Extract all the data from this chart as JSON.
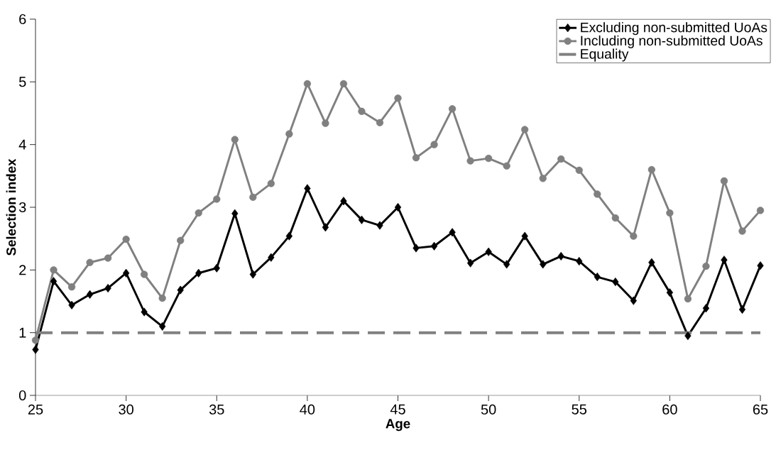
{
  "chart_data": {
    "type": "line",
    "xlabel": "Age",
    "ylabel": "Selection index",
    "x": [
      25,
      26,
      27,
      28,
      29,
      30,
      31,
      32,
      33,
      34,
      35,
      36,
      37,
      38,
      39,
      40,
      41,
      42,
      43,
      44,
      45,
      46,
      47,
      48,
      49,
      50,
      51,
      52,
      53,
      54,
      55,
      56,
      57,
      58,
      59,
      60,
      61,
      62,
      63,
      64,
      65
    ],
    "series": [
      {
        "name": "Excluding non-submitted UoAs",
        "color": "#000000",
        "marker": "diamond",
        "values": [
          0.73,
          1.82,
          1.44,
          1.61,
          1.71,
          1.95,
          1.33,
          1.1,
          1.68,
          1.95,
          2.03,
          2.9,
          1.93,
          2.2,
          2.54,
          3.3,
          2.68,
          3.1,
          2.8,
          2.71,
          3.0,
          2.35,
          2.38,
          2.6,
          2.11,
          2.29,
          2.09,
          2.54,
          2.09,
          2.22,
          2.14,
          1.89,
          1.81,
          1.51,
          2.12,
          1.64,
          0.95,
          1.39,
          2.16,
          1.37,
          2.07
        ]
      },
      {
        "name": "Including non-submitted UoAs",
        "color": "#808080",
        "marker": "circle",
        "values": [
          0.88,
          2.0,
          1.73,
          2.12,
          2.19,
          2.49,
          1.93,
          1.55,
          2.47,
          2.91,
          3.13,
          4.08,
          3.16,
          3.38,
          4.17,
          4.97,
          4.34,
          4.97,
          4.53,
          4.35,
          4.74,
          3.79,
          4.0,
          4.57,
          3.74,
          3.78,
          3.66,
          4.24,
          3.46,
          3.77,
          3.59,
          3.21,
          2.83,
          2.54,
          3.6,
          2.91,
          1.54,
          2.06,
          3.42,
          2.62,
          2.95
        ]
      }
    ],
    "ref_lines": [
      {
        "axis": "y",
        "value": 1,
        "label": "Equality",
        "color": "#808080",
        "line_style": "dashed"
      }
    ],
    "xlim": [
      25,
      65
    ],
    "xticks": [
      25,
      30,
      35,
      40,
      45,
      50,
      55,
      60,
      65
    ],
    "ylim": [
      0,
      6
    ],
    "yticks": [
      0,
      1,
      2,
      3,
      4,
      5,
      6
    ],
    "grid": false,
    "legend": "top right"
  }
}
